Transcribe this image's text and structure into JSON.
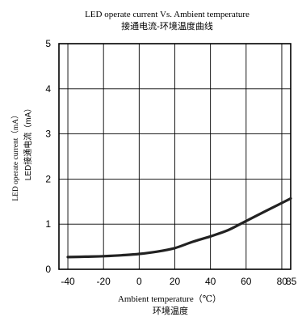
{
  "chart_data": {
    "type": "line",
    "title": "LED operate current Vs. Ambient temperature",
    "subtitle": "接通电流-环境温度曲线",
    "xlabel": "Ambient temperature（℃）",
    "xlabel_cn": "环境温度",
    "ylabel": "LED operate current（mA）",
    "ylabel_cn": "LED接通电流（mA）",
    "xlim": [
      -45,
      85
    ],
    "ylim": [
      0,
      5
    ],
    "xticks": [
      "-40",
      "-20",
      "0",
      "20",
      "40",
      "60",
      "80",
      "85"
    ],
    "yticks": [
      "0",
      "1",
      "2",
      "3",
      "4",
      "5"
    ],
    "grid": true,
    "series": [
      {
        "x": [
          -40,
          -30,
          -20,
          -10,
          0,
          10,
          20,
          30,
          40,
          50,
          60,
          70,
          80,
          85
        ],
        "y": [
          0.27,
          0.28,
          0.29,
          0.31,
          0.34,
          0.39,
          0.47,
          0.61,
          0.73,
          0.87,
          1.07,
          1.27,
          1.47,
          1.57
        ]
      }
    ],
    "line_color": "#222222"
  }
}
